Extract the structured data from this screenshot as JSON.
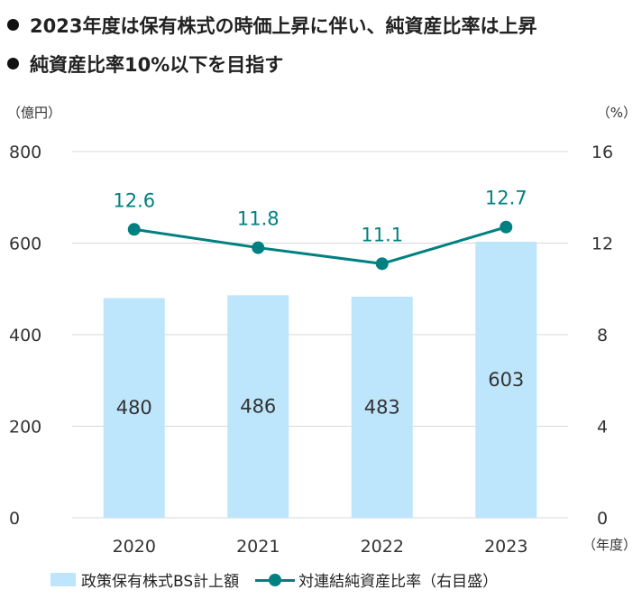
{
  "headlines": [
    "2023年度は保有株式の時価上昇に伴い、純資産比率は上昇",
    "純資産比率10%以下を目指す"
  ],
  "chart_data": {
    "type": "bar",
    "categories": [
      "2020",
      "2021",
      "2022",
      "2023"
    ],
    "series": [
      {
        "name": "政策保有株式BS計上額",
        "type": "bar",
        "axis": "left",
        "values": [
          480,
          486,
          483,
          603
        ]
      },
      {
        "name": "対連結純資産比率（右目盛）",
        "type": "line",
        "axis": "right",
        "values": [
          12.6,
          11.8,
          11.1,
          12.7
        ]
      }
    ],
    "bar_labels": [
      "480",
      "486",
      "483",
      "603"
    ],
    "line_labels": [
      "12.6",
      "11.8",
      "11.1",
      "12.7"
    ],
    "left_axis": {
      "unit_label": "（億円）",
      "ticks": [
        "0",
        "200",
        "400",
        "600",
        "800"
      ],
      "range": [
        0,
        800
      ]
    },
    "right_axis": {
      "unit_label": "（%）",
      "ticks": [
        "0",
        "4",
        "8",
        "12",
        "16"
      ],
      "range": [
        0,
        16
      ]
    },
    "x_axis_unit_label": "（年度）",
    "grid": true,
    "legend_position": "bottom",
    "colors": {
      "bar": "#BDE5FB",
      "line": "#008080",
      "grid": "#D9D9D9",
      "text": "#333333"
    }
  }
}
